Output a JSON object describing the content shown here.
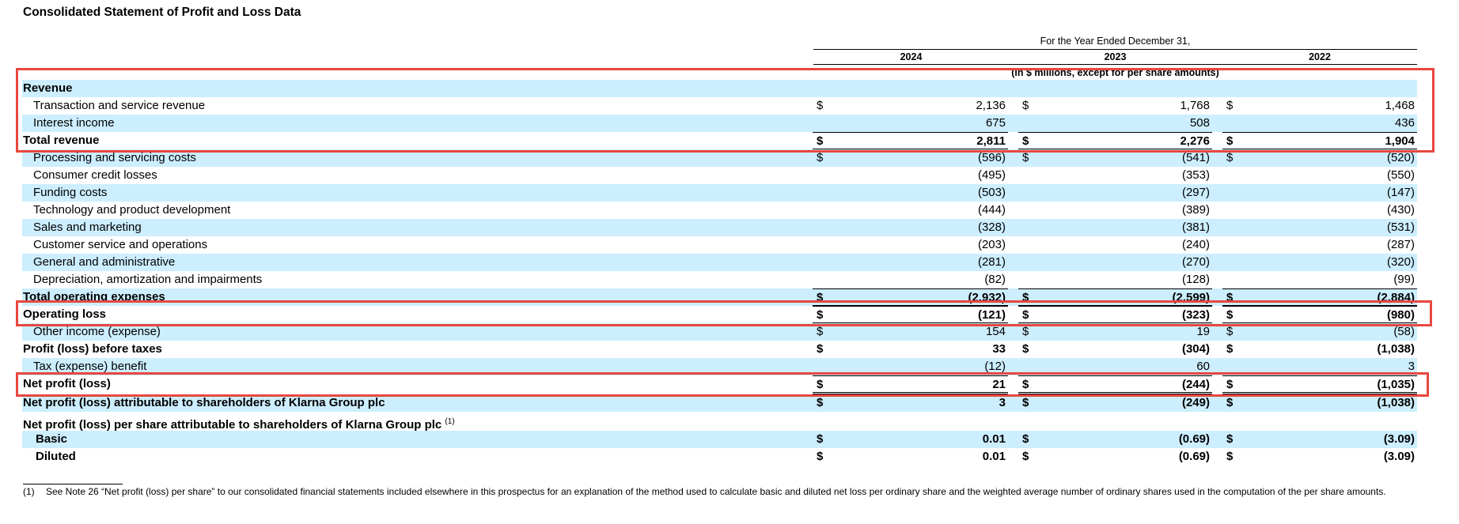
{
  "title": "Consolidated Statement of Profit and Loss Data",
  "header": {
    "period": "For the Year Ended December 31,",
    "years": [
      "2024",
      "2023",
      "2022"
    ],
    "units": "(in $ millions, except for per share amounts)"
  },
  "rows": [
    {
      "label": "Revenue",
      "style": "section",
      "values": [
        "",
        "",
        ""
      ]
    },
    {
      "label": "Transaction and service revenue",
      "style": "indent",
      "dollar": true,
      "values": [
        "2,136",
        "1,768",
        "1,468"
      ]
    },
    {
      "label": "Interest income",
      "style": "indent",
      "values": [
        "675",
        "508",
        "436"
      ]
    },
    {
      "label": "Total revenue",
      "style": "total",
      "dollar": true,
      "values": [
        "2,811",
        "2,276",
        "1,904"
      ]
    },
    {
      "label": "Processing and servicing costs",
      "style": "indent",
      "dollar": true,
      "values": [
        "(596)",
        "(541)",
        "(520)"
      ]
    },
    {
      "label": "Consumer credit losses",
      "style": "indent",
      "values": [
        "(495)",
        "(353)",
        "(550)"
      ]
    },
    {
      "label": "Funding costs",
      "style": "indent",
      "values": [
        "(503)",
        "(297)",
        "(147)"
      ]
    },
    {
      "label": "Technology and product development",
      "style": "indent",
      "values": [
        "(444)",
        "(389)",
        "(430)"
      ]
    },
    {
      "label": "Sales and marketing",
      "style": "indent",
      "values": [
        "(328)",
        "(381)",
        "(531)"
      ]
    },
    {
      "label": "Customer service and operations",
      "style": "indent",
      "values": [
        "(203)",
        "(240)",
        "(287)"
      ]
    },
    {
      "label": "General and administrative",
      "style": "indent",
      "values": [
        "(281)",
        "(270)",
        "(320)"
      ]
    },
    {
      "label": "Depreciation, amortization and impairments",
      "style": "indent",
      "values": [
        "(82)",
        "(128)",
        "(99)"
      ]
    },
    {
      "label": "Total operating expenses",
      "style": "total",
      "dollar": true,
      "values": [
        "(2,932)",
        "(2,599)",
        "(2,884)"
      ]
    },
    {
      "label": "Operating loss",
      "style": "total",
      "dollar": true,
      "values": [
        "(121)",
        "(323)",
        "(980)"
      ]
    },
    {
      "label": "Other income (expense)",
      "style": "indent",
      "dollar": true,
      "values": [
        "154",
        "19",
        "(58)"
      ]
    },
    {
      "label": "Profit (loss) before taxes",
      "style": "bold",
      "dollar": true,
      "values": [
        "33",
        "(304)",
        "(1,038)"
      ]
    },
    {
      "label": "Tax (expense) benefit",
      "style": "indent",
      "values": [
        "(12)",
        "60",
        "3"
      ]
    },
    {
      "label": "Net profit (loss)",
      "style": "grand",
      "dollar": true,
      "values": [
        "21",
        "(244)",
        "(1,035)"
      ]
    },
    {
      "label": "Net profit (loss) attributable to shareholders of Klarna Group plc",
      "style": "bold",
      "dollar": true,
      "values": [
        "3",
        "(249)",
        "(1,038)"
      ]
    },
    {
      "label": "Net profit (loss) per share attributable to shareholders of Klarna Group plc",
      "footnote_ref": "(1)",
      "style": "bold",
      "values": [
        "",
        "",
        ""
      ]
    },
    {
      "label": "Basic",
      "style": "bold-indent",
      "dollar": true,
      "values": [
        "0.01",
        "(0.69)",
        "(3.09)"
      ]
    },
    {
      "label": "Diluted",
      "style": "bold-indent",
      "dollar": true,
      "values": [
        "0.01",
        "(0.69)",
        "(3.09)"
      ]
    }
  ],
  "currency_symbol": "$",
  "footnote": {
    "marker": "(1)",
    "text": "See Note 26 “Net profit (loss) per share” to our consolidated financial statements included elsewhere in this prospectus for an explanation of the method used to calculate basic and diluted net loss per ordinary share and the weighted average number of ordinary shares used in the computation of the per share amounts."
  },
  "colors": {
    "row_band": "#cceeff",
    "highlight_box": "#e8473f"
  }
}
